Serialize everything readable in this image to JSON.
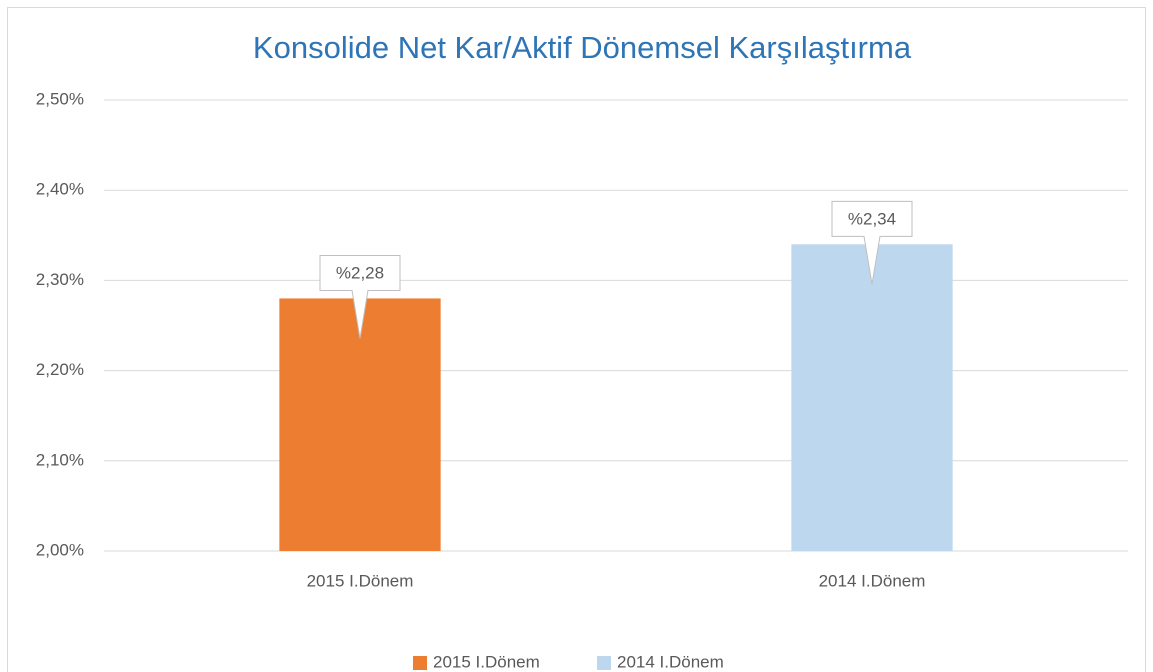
{
  "chart_data": {
    "type": "bar",
    "title": "Konsolide Net Kar/Aktif Dönemsel Karşılaştırma",
    "categories": [
      "2015 I.Dönem",
      "2014 I.Dönem"
    ],
    "values": [
      2.28,
      2.34
    ],
    "value_labels": [
      "%2,28",
      "%2,34"
    ],
    "colors": [
      "#ed7d31",
      "#bdd7ee"
    ],
    "ylim": [
      2.0,
      2.5
    ],
    "yticks": [
      {
        "value": 2.0,
        "label": "2,00%"
      },
      {
        "value": 2.1,
        "label": "2,10%"
      },
      {
        "value": 2.2,
        "label": "2,20%"
      },
      {
        "value": 2.3,
        "label": "2,30%"
      },
      {
        "value": 2.4,
        "label": "2,40%"
      },
      {
        "value": 2.5,
        "label": "2,50%"
      }
    ],
    "grid": true,
    "legend": "bottom"
  }
}
